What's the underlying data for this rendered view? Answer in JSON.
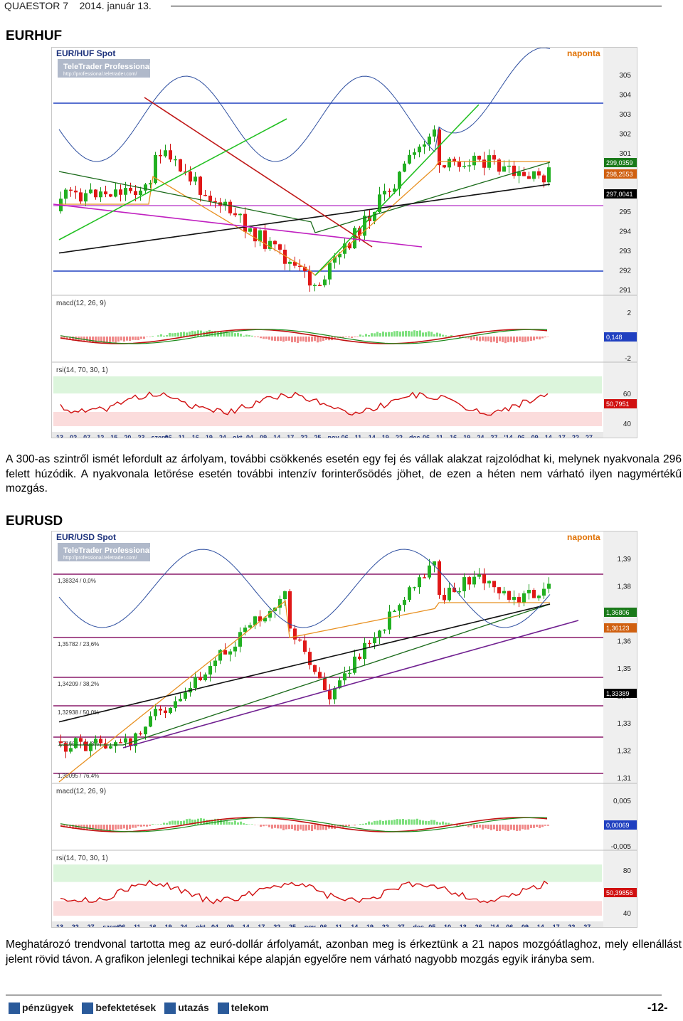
{
  "header": {
    "publication": "QUAESTOR 7",
    "date": "2014. január 13."
  },
  "sections": [
    {
      "title": "EURHUF",
      "chart": {
        "instrument": "EUR/HUF Spot",
        "period": "naponta",
        "provider": "TeleTrader Professional",
        "provider_url": "http://professional.teletrader.com/",
        "price_axis": [
          "305",
          "304",
          "303",
          "302",
          "301",
          "300",
          "296",
          "295",
          "294",
          "293",
          "292",
          "291"
        ],
        "price_badges": [
          "299,0359",
          "298,2553",
          "297,0041"
        ],
        "macd_label": "macd(12, 26, 9)",
        "macd_axis": [
          "2",
          "0",
          "-2"
        ],
        "macd_badge": "0,148",
        "rsi_label": "rsi(14, 70, 30, 1)",
        "rsi_axis": [
          "60",
          "40"
        ],
        "rsi_badge": "50,7951",
        "date_axis": [
          "13",
          "02",
          "07",
          "12",
          "15",
          "20",
          "23",
          "szept.",
          "06",
          "11",
          "16",
          "19",
          "24",
          "okt.",
          "04",
          "09",
          "14",
          "17",
          "22",
          "25",
          "nov.",
          "06",
          "11",
          "14",
          "19",
          "22",
          "dec.",
          "06",
          "11",
          "16",
          "19",
          "24",
          "27",
          "'14",
          "06",
          "09",
          "14",
          "17",
          "22",
          "27"
        ],
        "copyright": "© 2014 TeleTrader Software GmbH",
        "site": "http://professional.teletrader.com"
      }
    },
    {
      "title": "EURUSD",
      "chart": {
        "instrument": "EUR/USD Spot",
        "period": "naponta",
        "provider": "TeleTrader Professional",
        "provider_url": "http://professional.teletrader.com/",
        "price_axis": [
          "1,39",
          "1,38",
          "1,37",
          "1,36",
          "1,35",
          "1,34",
          "1,33",
          "1,32",
          "1,31"
        ],
        "price_badges": [
          "1,36806",
          "1,36123",
          "1,33389"
        ],
        "fib_levels": [
          "1,38324 / 0,0%",
          "1,35782 / 23,6%",
          "1,34209 / 38,2%",
          "1,32938 / 50,0%",
          "1,31668 / 61,8%",
          "1,30095 / 76,4%"
        ],
        "macd_label": "macd(12, 26, 9)",
        "macd_axis": [
          "0,005",
          "-0,005"
        ],
        "macd_badge": "0,00069",
        "rsi_label": "rsi(14, 70, 30, 1)",
        "rsi_axis": [
          "80",
          "60",
          "40"
        ],
        "rsi_badge": "50,39856",
        "date_axis": [
          "13",
          "22",
          "27",
          "szept.",
          "06",
          "11",
          "16",
          "19",
          "24",
          "okt.",
          "04",
          "09",
          "14",
          "17",
          "22",
          "25",
          "nov.",
          "06",
          "11",
          "14",
          "19",
          "22",
          "27",
          "dec.",
          "05",
          "10",
          "13",
          "26",
          "'14",
          "06",
          "09",
          "14",
          "17",
          "22",
          "27"
        ],
        "copyright": "© 2014 TeleTrader Software GmbH",
        "site": "http://professional.teletrader.com"
      }
    }
  ],
  "paragraphs": [
    "A 300-as szintről ismét lefordult az árfolyam, további csökkenés esetén egy fej és vállak alakzat rajzolódhat ki, melynek nyakvonala 296 felett húzódik. A nyakvonala letörése esetén további intenzív forinterősödés jöhet, de ezen a héten nem várható ilyen nagymértékű mozgás.",
    "Meghatározó trendvonal tartotta meg az euró-dollár árfolyamát, azonban meg is érkeztünk a 21 napos mozgóátlaghoz, mely ellenállást jelent rövid távon. A grafikon jelenlegi technikai képe alapján egyelőre nem várható nagyobb mozgás egyik irányba sem."
  ],
  "footer": {
    "nav": [
      "pénzügyek",
      "befektetések",
      "utazás",
      "telekom"
    ],
    "page": "-12-"
  }
}
